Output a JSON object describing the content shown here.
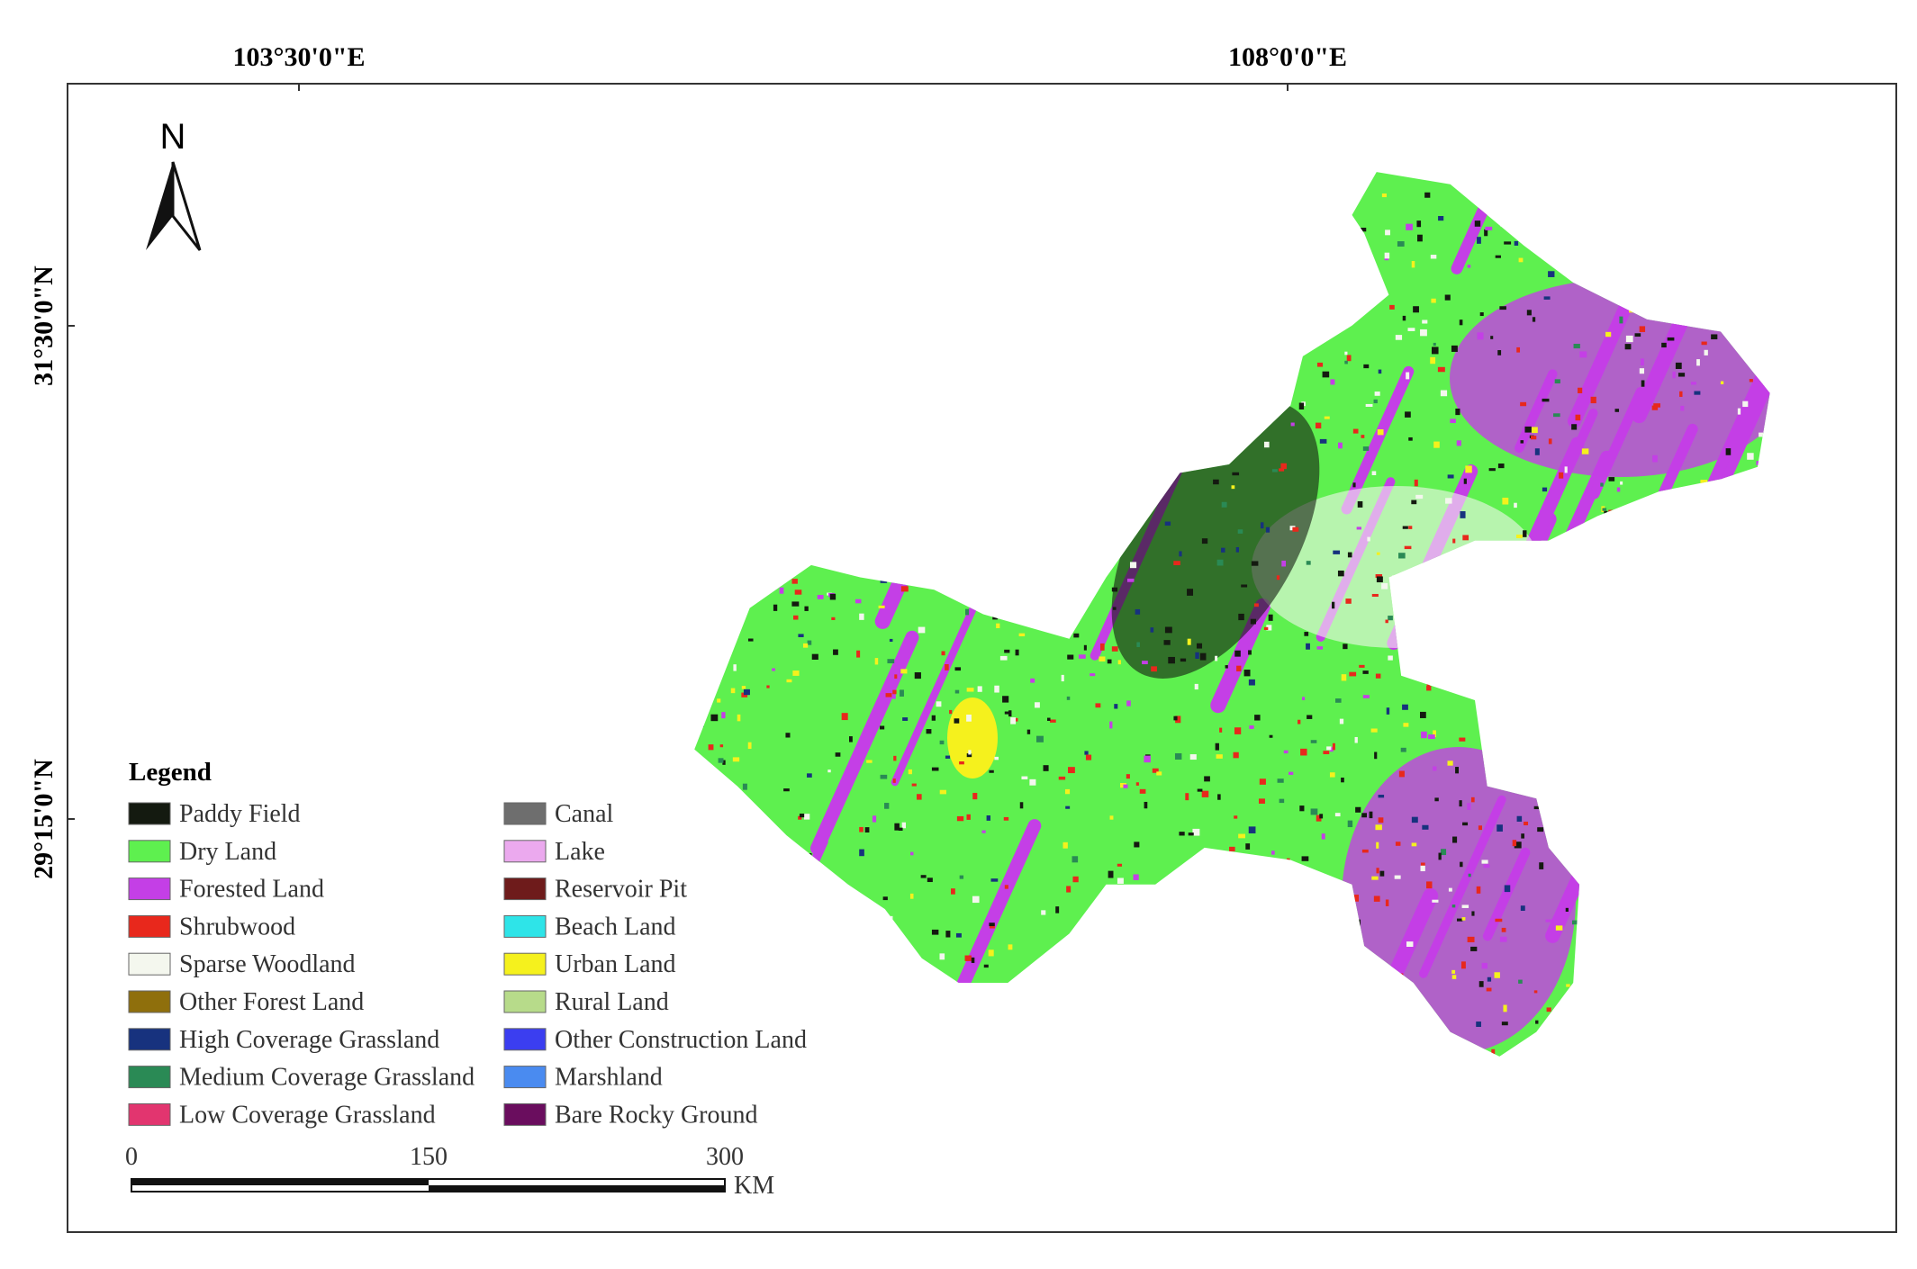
{
  "map": {
    "x_labels": [
      "103°30'0\"E",
      "108°0'0\"E"
    ],
    "y_labels": [
      "31°30'0\"N",
      "29°15'0\"N"
    ],
    "north": "N",
    "legend": {
      "title": "Legend",
      "items": [
        {
          "label": "Paddy Field",
          "color": "#141a10"
        },
        {
          "label": "Dry Land",
          "color": "#5ef04f"
        },
        {
          "label": "Forested Land",
          "color": "#c43fe6"
        },
        {
          "label": "Shrubwood",
          "color": "#e8281c"
        },
        {
          "label": "Sparse Woodland",
          "color": "#f4f7ee"
        },
        {
          "label": "Other Forest Land",
          "color": "#8f6f0c"
        },
        {
          "label": "High Coverage Grassland",
          "color": "#17327e"
        },
        {
          "label": "Medium Coverage Grassland",
          "color": "#2a8a55"
        },
        {
          "label": "Low Coverage Grassland",
          "color": "#e2356f"
        },
        {
          "label": "Canal",
          "color": "#6e6e6e"
        },
        {
          "label": "Lake",
          "color": "#eba9ee"
        },
        {
          "label": "Reservoir Pit",
          "color": "#6e1b1b"
        },
        {
          "label": "Beach Land",
          "color": "#2ee4e8"
        },
        {
          "label": "Urban Land",
          "color": "#f5f11d"
        },
        {
          "label": "Rural Land",
          "color": "#b7db8a"
        },
        {
          "label": "Other Construction Land",
          "color": "#3b3ef0"
        },
        {
          "label": "Marshland",
          "color": "#4a8bf0"
        },
        {
          "label": "Bare Rocky Ground",
          "color": "#6a0d5e"
        }
      ]
    },
    "scale_bar": {
      "labels": [
        "0",
        "150",
        "300"
      ],
      "unit": "KM"
    }
  }
}
